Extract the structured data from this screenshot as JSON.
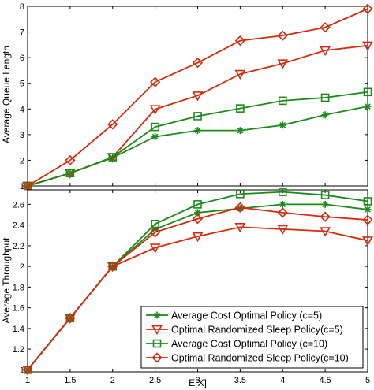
{
  "chart_data": [
    {
      "type": "line",
      "ylabel": "Average Queue Length",
      "xlim": [
        1,
        5
      ],
      "ylim": [
        1,
        8
      ],
      "xticks": [
        "1",
        "1.5",
        "2",
        "2.5",
        "3",
        "3.5",
        "4",
        "4.5",
        "5"
      ],
      "yticks": [
        "1",
        "2",
        "3",
        "4",
        "5",
        "6",
        "7",
        "8"
      ],
      "x": [
        1,
        1.5,
        2,
        2.5,
        3,
        3.5,
        4,
        4.5,
        5
      ],
      "series": [
        {
          "name": "Average Cost Optimal Policy (c=5)",
          "marker": "star",
          "color": "#1b8a1b",
          "values": [
            1.0,
            1.5,
            2.1,
            2.92,
            3.16,
            3.16,
            3.37,
            3.77,
            4.1
          ]
        },
        {
          "name": "Optimal Randomized Sleep Policy(c=5)",
          "marker": "triangle-down",
          "color": "#d42a0e",
          "values": [
            1.0,
            1.5,
            2.12,
            3.99,
            4.52,
            5.36,
            5.77,
            6.28,
            6.47
          ]
        },
        {
          "name": "Average Cost Optimal Policy (c=10)",
          "marker": "square",
          "color": "#1b8a1b",
          "values": [
            1.0,
            1.5,
            2.12,
            3.3,
            3.72,
            4.02,
            4.32,
            4.44,
            4.66
          ]
        },
        {
          "name": "Optimal Randomized Sleep Policy(c=10)",
          "marker": "diamond",
          "color": "#d42a0e",
          "values": [
            1.0,
            2.0,
            3.4,
            5.05,
            5.8,
            6.66,
            6.86,
            7.18,
            7.9
          ]
        }
      ]
    },
    {
      "type": "line",
      "xlabel": "E[X]",
      "ylabel": "Average Throughput",
      "xlim": [
        1,
        5
      ],
      "ylim": [
        0.98,
        2.74
      ],
      "xticks": [
        "1",
        "1.5",
        "2",
        "2.5",
        "3",
        "3.5",
        "4",
        "4.5",
        "5"
      ],
      "yticks": [
        "1",
        "1.2",
        "1.4",
        "1.6",
        "1.8",
        "2",
        "2.2",
        "2.4",
        "2.6"
      ],
      "x": [
        1,
        1.5,
        2,
        2.5,
        3,
        3.5,
        4,
        4.5,
        5
      ],
      "legend_position": "bottom-right",
      "series": [
        {
          "name": "Average Cost Optimal Policy (c=5)",
          "marker": "star",
          "color": "#1b8a1b",
          "values": [
            1.0,
            1.5,
            2.0,
            2.36,
            2.52,
            2.56,
            2.6,
            2.6,
            2.55
          ]
        },
        {
          "name": "Optimal Randomized Sleep Policy(c=5)",
          "marker": "triangle-down",
          "color": "#d42a0e",
          "values": [
            1.0,
            1.5,
            2.0,
            2.18,
            2.29,
            2.38,
            2.36,
            2.34,
            2.25
          ]
        },
        {
          "name": "Average Cost Optimal Policy (c=10)",
          "marker": "square",
          "color": "#1b8a1b",
          "values": [
            1.0,
            1.5,
            2.0,
            2.41,
            2.6,
            2.7,
            2.72,
            2.69,
            2.63
          ]
        },
        {
          "name": "Optimal Randomized Sleep Policy(c=10)",
          "marker": "diamond",
          "color": "#d42a0e",
          "values": [
            1.0,
            1.5,
            2.0,
            2.33,
            2.46,
            2.57,
            2.52,
            2.48,
            2.45
          ]
        }
      ]
    }
  ]
}
